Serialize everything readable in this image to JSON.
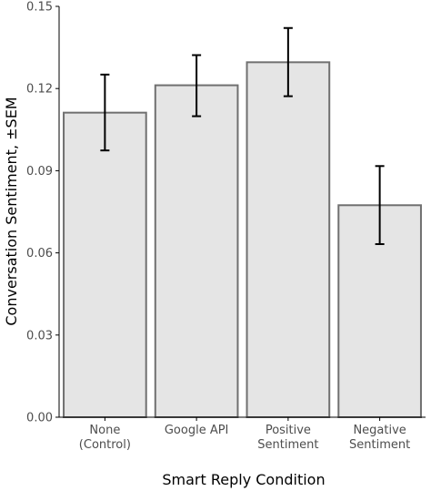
{
  "chart_data": {
    "type": "bar",
    "categories": [
      [
        "None",
        "(Control)"
      ],
      [
        "Google API"
      ],
      [
        "Positive",
        "Sentiment"
      ],
      [
        "Negative",
        "Sentiment"
      ]
    ],
    "values": [
      0.1112,
      0.1212,
      0.1296,
      0.0774
    ],
    "error_low": [
      0.0974,
      0.1099,
      0.1172,
      0.0632
    ],
    "error_high": [
      0.1251,
      0.1322,
      0.1421,
      0.0917
    ],
    "title": "",
    "xlabel": "Smart Reply Condition",
    "ylabel": "Conversation Sentiment, ±SEM",
    "ylim": [
      0,
      0.15
    ],
    "yticks": [
      "0.00",
      "0.03",
      "0.06",
      "0.09",
      "0.12",
      "0.15"
    ],
    "grid": false,
    "legend": "none",
    "colors": {
      "bar_fill": "#e5e5e5",
      "bar_stroke": "#707070",
      "error_bar": "#000000",
      "axis": "#000000",
      "tick_text": "#4d4d4d"
    }
  }
}
